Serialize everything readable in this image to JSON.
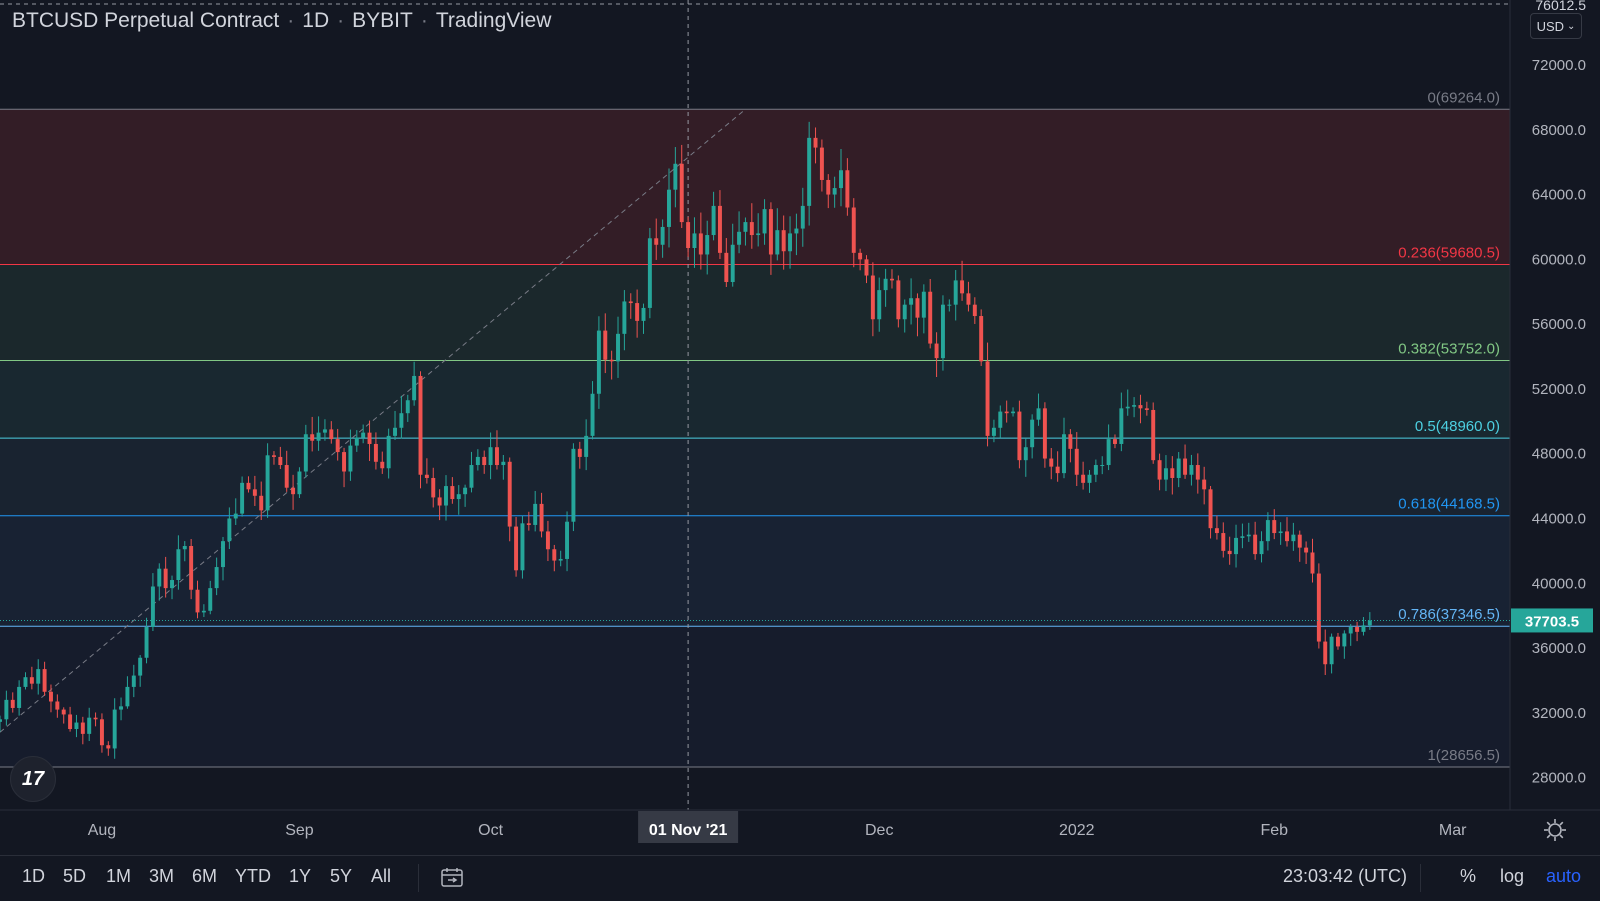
{
  "header": {
    "symbol": "BTCUSD Perpetual Contract",
    "interval": "1D",
    "exchange": "BYBIT",
    "source": "TradingView"
  },
  "currency_selector": "USD",
  "top_price_label": "76012.5",
  "toolbar": {
    "ranges": [
      "1D",
      "5D",
      "1M",
      "3M",
      "6M",
      "YTD",
      "1Y",
      "5Y",
      "All"
    ],
    "clock": "23:03:42 (UTC)",
    "percent": "%",
    "log": "log",
    "auto": "auto"
  },
  "logo_text": "17",
  "chart_data": {
    "type": "candlestick",
    "y_axis": {
      "min": 26000,
      "max": 76012.5,
      "ticks": [
        "28000.0",
        "32000.0",
        "36000.0",
        "40000.0",
        "44000.0",
        "48000.0",
        "52000.0",
        "56000.0",
        "60000.0",
        "64000.0",
        "68000.0",
        "72000.0"
      ]
    },
    "x_axis": {
      "start": "2021-07-16",
      "end": "2022-03-10",
      "ticks": [
        {
          "label": "Aug",
          "date": "2021-08-01"
        },
        {
          "label": "Sep",
          "date": "2021-09-01"
        },
        {
          "label": "Oct",
          "date": "2021-10-01"
        },
        {
          "label": "Dec",
          "date": "2021-12-01"
        },
        {
          "label": "2022",
          "date": "2022-01-01"
        },
        {
          "label": "Feb",
          "date": "2022-02-01"
        },
        {
          "label": "Mar",
          "date": "2022-03-01"
        }
      ],
      "crosshair": {
        "label": "01 Nov '21",
        "date": "2021-11-01"
      }
    },
    "last_price": {
      "label": "37703.5",
      "value": 37703.5
    },
    "fibonacci": {
      "high": 69264.0,
      "low": 28656.5,
      "levels": [
        {
          "ratio": 0,
          "value": 69264.0,
          "label": "0(69264.0)",
          "color": "#787b86"
        },
        {
          "ratio": 0.236,
          "value": 59680.5,
          "label": "0.236(59680.5)",
          "color": "#f23645"
        },
        {
          "ratio": 0.382,
          "value": 53752.0,
          "label": "0.382(53752.0)",
          "color": "#81c784"
        },
        {
          "ratio": 0.5,
          "value": 48960.0,
          "label": "0.5(48960.0)",
          "color": "#4dd0e1"
        },
        {
          "ratio": 0.618,
          "value": 44168.5,
          "label": "0.618(44168.5)",
          "color": "#2196f3"
        },
        {
          "ratio": 0.786,
          "value": 37346.5,
          "label": "0.786(37346.5)",
          "color": "#64b5f6"
        },
        {
          "ratio": 1,
          "value": 28656.5,
          "label": "1(28656.5)",
          "color": "#787b86"
        }
      ]
    },
    "trend_line": {
      "from": {
        "date": "2021-07-16",
        "value": 30800
      },
      "to": {
        "date": "2021-11-10",
        "value": 69264
      }
    },
    "up_color": "#26a69a",
    "down_color": "#ef5350",
    "start_date": "2021-07-16",
    "closes": [
      31600,
      32800,
      32300,
      33600,
      34200,
      33800,
      34700,
      33300,
      32700,
      32200,
      31900,
      31000,
      31400,
      30700,
      31700,
      31600,
      30000,
      29800,
      32200,
      32400,
      33600,
      34300,
      35400,
      37300,
      39800,
      40900,
      39700,
      40200,
      42100,
      42300,
      39600,
      38200,
      38300,
      39700,
      41000,
      42600,
      44000,
      44300,
      46200,
      45800,
      45400,
      44500,
      47900,
      47800,
      47300,
      45900,
      45500,
      46900,
      49200,
      48800,
      49300,
      49500,
      48900,
      48100,
      46900,
      48500,
      49000,
      49300,
      48600,
      47500,
      47100,
      49100,
      49600,
      50500,
      51300,
      52800,
      46700,
      46500,
      45300,
      44800,
      46000,
      45200,
      45500,
      45900,
      47300,
      47800,
      47300,
      48400,
      47300,
      47500,
      43500,
      40800,
      43700,
      43600,
      44900,
      43200,
      42100,
      41400,
      41500,
      43800,
      48300,
      47800,
      49100,
      51700,
      55600,
      53800,
      53700,
      55400,
      57400,
      57300,
      56200,
      57000,
      61300,
      60900,
      62000,
      64300,
      65900,
      62300,
      60700,
      61600,
      60300,
      61500,
      63300,
      60400,
      58600,
      60900,
      61700,
      62300,
      61500,
      61600,
      63100,
      60300,
      61800,
      60500,
      61600,
      61900,
      63300,
      67500,
      66900,
      64900,
      64000,
      64400,
      65500,
      63200,
      60400,
      60000,
      59000,
      56300,
      58100,
      58800,
      58700,
      56300,
      57200,
      57600,
      56400,
      58000,
      54800,
      53900,
      57200,
      57200,
      58700,
      57900,
      57200,
      56500,
      53700,
      49100,
      49600,
      50600,
      50500,
      50600,
      47600,
      48400,
      50100,
      50800,
      47700,
      47200,
      46800,
      49200,
      48300,
      46700,
      46200,
      46700,
      47300,
      47300,
      48900,
      48600,
      50800,
      50900,
      51000,
      50800,
      50700,
      47600,
      46400,
      47100,
      46500,
      47700,
      46700,
      47300,
      46400,
      45800,
      43400,
      43100,
      42000,
      41800,
      42800,
      42900,
      43000,
      41800,
      42600,
      43900,
      43100,
      43200,
      42600,
      43000,
      42200,
      41900,
      40600,
      36400,
      35000,
      36700,
      36100,
      36900,
      37300,
      37000,
      37400,
      37700
    ]
  }
}
